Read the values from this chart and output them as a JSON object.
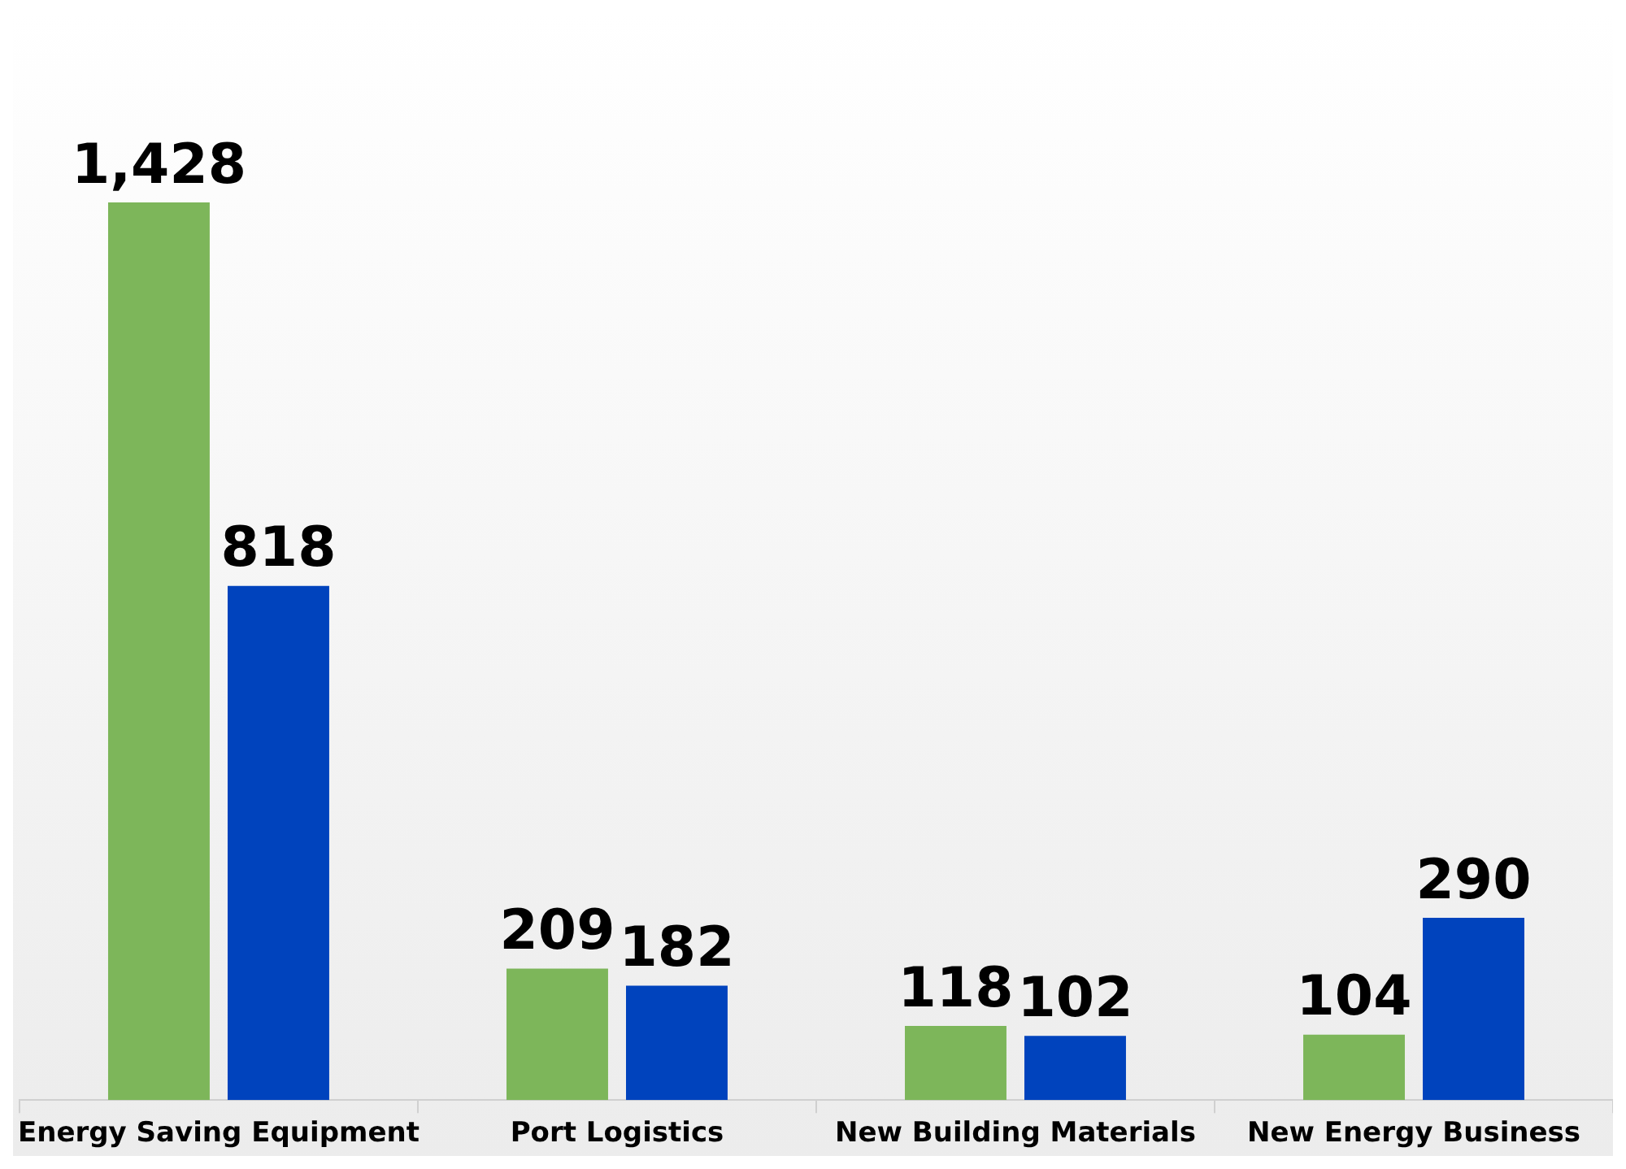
{
  "chart_data": {
    "type": "bar",
    "categories": [
      "Energy Saving Equipment",
      "Port Logistics",
      "New Building Materials",
      "New Energy Business"
    ],
    "series": [
      {
        "color": "#7db65a",
        "values": [
          1428,
          209,
          118,
          104
        ],
        "value_labels": [
          "1,428",
          "209",
          "118",
          "104"
        ]
      },
      {
        "color": "#0043bd",
        "values": [
          818,
          182,
          102,
          290
        ],
        "value_labels": [
          "818",
          "182",
          "102",
          "290"
        ]
      }
    ],
    "grid": false,
    "legend": false
  }
}
